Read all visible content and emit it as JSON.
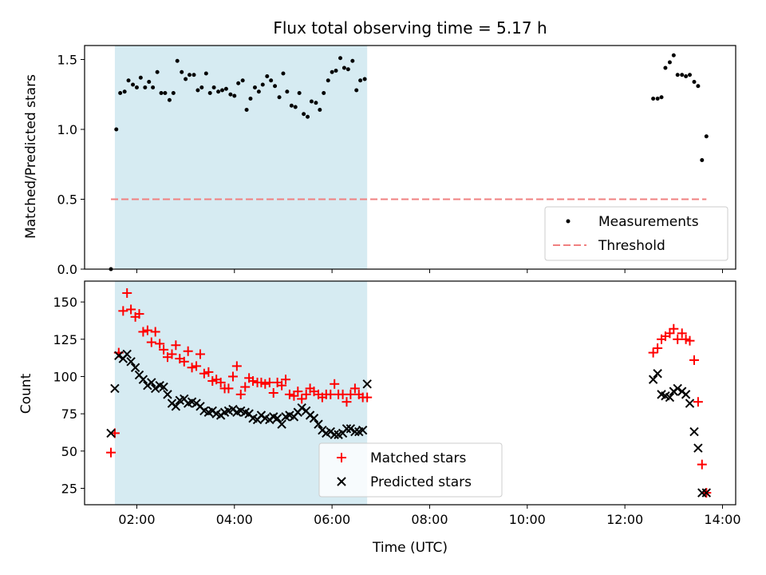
{
  "title": "Flux total observing time = 5.17 h",
  "colors": {
    "shade": "#add8e6",
    "matched": "#ff0000",
    "predicted": "#000000",
    "threshold": "#f08080",
    "measure": "#000000"
  },
  "chart_data": [
    {
      "type": "scatter",
      "ylabel": "Matched/Predicted stars",
      "ylim": [
        0.0,
        1.6
      ],
      "yticks": [
        0.0,
        0.5,
        1.0,
        1.5
      ],
      "ytick_labels": [
        "0.0",
        "0.5",
        "1.0",
        "1.5"
      ],
      "xlim_hours": [
        0.93,
        14.27
      ],
      "shaded_span_hours": [
        1.55,
        6.72
      ],
      "threshold": {
        "name": "Threshold",
        "value": 0.5,
        "x_hours": [
          1.47,
          13.67
        ]
      },
      "legend": {
        "position": "lower-right",
        "entries": [
          "Measurements",
          "Threshold"
        ]
      },
      "series": [
        {
          "name": "Measurements",
          "x": [
            1.47,
            1.58,
            1.66,
            1.75,
            1.83,
            1.92,
            2.0,
            2.08,
            2.17,
            2.25,
            2.33,
            2.42,
            2.5,
            2.58,
            2.67,
            2.75,
            2.83,
            2.92,
            3.0,
            3.08,
            3.17,
            3.25,
            3.33,
            3.42,
            3.5,
            3.58,
            3.67,
            3.75,
            3.83,
            3.92,
            4.0,
            4.08,
            4.17,
            4.25,
            4.33,
            4.42,
            4.5,
            4.58,
            4.67,
            4.75,
            4.83,
            4.92,
            5.0,
            5.08,
            5.17,
            5.25,
            5.33,
            5.42,
            5.5,
            5.58,
            5.67,
            5.75,
            5.83,
            5.92,
            6.0,
            6.08,
            6.17,
            6.25,
            6.33,
            6.42,
            6.5,
            6.58,
            6.67,
            12.58,
            12.67,
            12.75,
            12.83,
            12.92,
            13.0,
            13.08,
            13.17,
            13.25,
            13.33,
            13.42,
            13.5,
            13.58,
            13.67
          ],
          "y": [
            0.0,
            1.0,
            1.26,
            1.27,
            1.35,
            1.32,
            1.3,
            1.37,
            1.3,
            1.34,
            1.3,
            1.41,
            1.26,
            1.26,
            1.21,
            1.26,
            1.49,
            1.41,
            1.36,
            1.39,
            1.39,
            1.28,
            1.3,
            1.4,
            1.26,
            1.3,
            1.27,
            1.28,
            1.29,
            1.25,
            1.24,
            1.33,
            1.35,
            1.14,
            1.22,
            1.3,
            1.27,
            1.32,
            1.38,
            1.35,
            1.31,
            1.23,
            1.4,
            1.27,
            1.17,
            1.16,
            1.26,
            1.11,
            1.09,
            1.2,
            1.19,
            1.14,
            1.26,
            1.35,
            1.41,
            1.42,
            1.51,
            1.44,
            1.43,
            1.49,
            1.28,
            1.35,
            1.36,
            1.22,
            1.22,
            1.23,
            1.44,
            1.48,
            1.53,
            1.39,
            1.39,
            1.38,
            1.39,
            1.34,
            1.31,
            0.78,
            0.95
          ]
        }
      ]
    },
    {
      "type": "scatter",
      "xlabel": "Time (UTC)",
      "ylabel": "Count",
      "ylim": [
        14,
        164
      ],
      "yticks": [
        25,
        50,
        75,
        100,
        125,
        150
      ],
      "ytick_labels": [
        "25",
        "50",
        "75",
        "100",
        "125",
        "150"
      ],
      "xlim_hours": [
        0.93,
        14.27
      ],
      "xticks_hours": [
        2,
        4,
        6,
        8,
        10,
        12,
        14
      ],
      "xtick_labels": [
        "02:00",
        "04:00",
        "06:00",
        "08:00",
        "10:00",
        "12:00",
        "14:00"
      ],
      "shaded_span_hours": [
        1.55,
        6.72
      ],
      "legend": {
        "position": "lower-center",
        "entries": [
          "Matched stars",
          "Predicted stars"
        ]
      },
      "series": [
        {
          "name": "Matched stars",
          "x": [
            1.47,
            1.55,
            1.63,
            1.72,
            1.8,
            1.88,
            1.97,
            2.05,
            2.13,
            2.22,
            2.3,
            2.38,
            2.47,
            2.55,
            2.63,
            2.72,
            2.8,
            2.88,
            2.97,
            3.05,
            3.13,
            3.22,
            3.3,
            3.38,
            3.47,
            3.55,
            3.63,
            3.72,
            3.8,
            3.88,
            3.97,
            4.05,
            4.13,
            4.22,
            4.3,
            4.38,
            4.47,
            4.55,
            4.63,
            4.72,
            4.8,
            4.88,
            4.97,
            5.05,
            5.13,
            5.22,
            5.3,
            5.38,
            5.47,
            5.55,
            5.63,
            5.72,
            5.8,
            5.88,
            5.97,
            6.05,
            6.13,
            6.22,
            6.3,
            6.38,
            6.47,
            6.55,
            6.63,
            6.72,
            12.58,
            12.67,
            12.75,
            12.83,
            12.92,
            13.0,
            13.08,
            13.17,
            13.25,
            13.33,
            13.42,
            13.5,
            13.58,
            13.67
          ],
          "y": [
            49,
            62,
            116,
            144,
            156,
            145,
            140,
            142,
            130,
            131,
            123,
            130,
            122,
            118,
            113,
            115,
            121,
            112,
            110,
            117,
            106,
            107,
            115,
            102,
            103,
            97,
            98,
            96,
            92,
            92,
            100,
            107,
            88,
            93,
            99,
            97,
            96,
            96,
            95,
            96,
            89,
            96,
            94,
            98,
            88,
            87,
            90,
            85,
            88,
            92,
            90,
            88,
            86,
            88,
            88,
            95,
            88,
            88,
            83,
            88,
            92,
            88,
            86,
            86,
            116,
            119,
            125,
            127,
            129,
            132,
            125,
            129,
            125,
            124,
            111,
            83,
            41,
            22
          ]
        },
        {
          "name": "Predicted stars",
          "x": [
            1.47,
            1.55,
            1.63,
            1.72,
            1.8,
            1.88,
            1.97,
            2.05,
            2.13,
            2.22,
            2.3,
            2.38,
            2.47,
            2.55,
            2.63,
            2.72,
            2.8,
            2.88,
            2.97,
            3.05,
            3.13,
            3.22,
            3.3,
            3.38,
            3.47,
            3.55,
            3.63,
            3.72,
            3.8,
            3.88,
            3.97,
            4.05,
            4.13,
            4.22,
            4.3,
            4.38,
            4.47,
            4.55,
            4.63,
            4.72,
            4.8,
            4.88,
            4.97,
            5.05,
            5.13,
            5.22,
            5.3,
            5.38,
            5.47,
            5.55,
            5.63,
            5.72,
            5.8,
            5.88,
            5.97,
            6.05,
            6.13,
            6.22,
            6.3,
            6.38,
            6.47,
            6.55,
            6.63,
            6.72,
            12.58,
            12.67,
            12.75,
            12.83,
            12.92,
            13.0,
            13.08,
            13.17,
            13.25,
            13.33,
            13.42,
            13.5,
            13.58,
            13.67
          ],
          "y": [
            62,
            92,
            114,
            112,
            115,
            110,
            106,
            101,
            98,
            94,
            96,
            92,
            94,
            93,
            88,
            82,
            80,
            84,
            85,
            82,
            83,
            82,
            80,
            77,
            76,
            77,
            75,
            74,
            76,
            77,
            78,
            76,
            77,
            76,
            75,
            72,
            71,
            74,
            72,
            71,
            73,
            72,
            68,
            73,
            74,
            73,
            76,
            79,
            77,
            74,
            72,
            68,
            64,
            62,
            63,
            61,
            61,
            62,
            65,
            65,
            63,
            63,
            64,
            95,
            98,
            102,
            88,
            87,
            86,
            90,
            92,
            90,
            88,
            82,
            63,
            52,
            22,
            22
          ]
        }
      ]
    }
  ]
}
